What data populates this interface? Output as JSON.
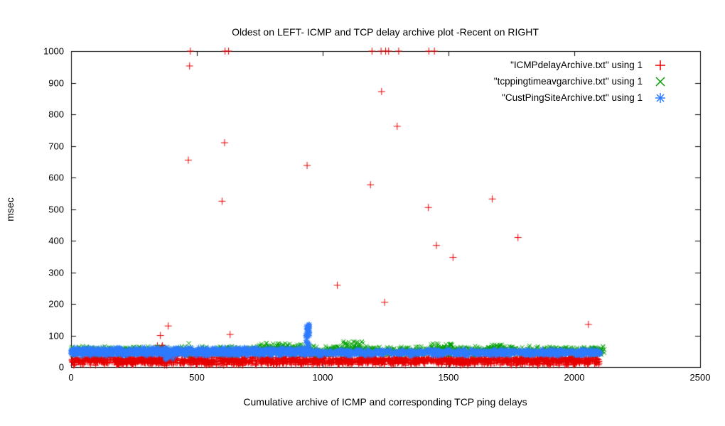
{
  "chart_data": {
    "type": "scatter",
    "title": "Oldest on LEFT- ICMP and TCP delay archive plot -Recent on RIGHT",
    "xlabel": "Cumulative archive of ICMP and corresponding TCP ping delays",
    "ylabel": "msec",
    "xlim": [
      0,
      2500
    ],
    "ylim": [
      0,
      1000
    ],
    "xticks": [
      0,
      500,
      1000,
      1500,
      2000,
      2500
    ],
    "yticks": [
      0,
      100,
      200,
      300,
      400,
      500,
      600,
      700,
      800,
      900,
      1000
    ],
    "grid": false,
    "legend_position": "top-right-inside",
    "background": "#ffffff",
    "axis_color": "#000000",
    "series": [
      {
        "name": "\"ICMPdelayArchive.txt\" using 1",
        "marker": "plus",
        "color": "#e60000",
        "band": {
          "x_min": 0,
          "x_max": 2100,
          "y_min": 4,
          "y_max": 36,
          "count": 1900,
          "seed": 11
        },
        "clusters": [
          {
            "x": 360,
            "spread": 18,
            "y_min": 45,
            "y_max": 70,
            "count": 10,
            "seed": 12
          }
        ],
        "points": [
          [
            355,
            100
          ],
          [
            386,
            130
          ],
          [
            466,
            655
          ],
          [
            471,
            953
          ],
          [
            474,
            1000
          ],
          [
            600,
            525
          ],
          [
            610,
            710
          ],
          [
            612,
            1000
          ],
          [
            626,
            1000
          ],
          [
            632,
            103
          ],
          [
            938,
            638
          ],
          [
            1058,
            259
          ],
          [
            1190,
            577
          ],
          [
            1196,
            1000
          ],
          [
            1232,
            1000
          ],
          [
            1234,
            872
          ],
          [
            1246,
            205
          ],
          [
            1250,
            1000
          ],
          [
            1262,
            1000
          ],
          [
            1296,
            762
          ],
          [
            1302,
            1000
          ],
          [
            1420,
            505
          ],
          [
            1422,
            1000
          ],
          [
            1444,
            1000
          ],
          [
            1452,
            385
          ],
          [
            1518,
            347
          ],
          [
            1674,
            532
          ],
          [
            1776,
            410
          ],
          [
            2056,
            135
          ]
        ]
      },
      {
        "name": "\"tcppingtimeavgarchive.txt\" using 1",
        "marker": "x",
        "color": "#00a000",
        "band": {
          "x_min": 0,
          "x_max": 2115,
          "y_min": 36,
          "y_max": 68,
          "count": 1500,
          "seed": 21
        },
        "clusters": [
          {
            "x": 855,
            "spread": 110,
            "y_min": 55,
            "y_max": 78,
            "count": 70,
            "seed": 22
          },
          {
            "x": 1120,
            "spread": 45,
            "y_min": 55,
            "y_max": 82,
            "count": 45,
            "seed": 23
          },
          {
            "x": 1470,
            "spread": 45,
            "y_min": 55,
            "y_max": 76,
            "count": 35,
            "seed": 24
          },
          {
            "x": 1685,
            "spread": 35,
            "y_min": 52,
            "y_max": 72,
            "count": 25,
            "seed": 25
          },
          {
            "x": 2075,
            "spread": 45,
            "y_min": 38,
            "y_max": 62,
            "count": 35,
            "seed": 26
          }
        ],
        "points": [
          [
            468,
            75
          ]
        ]
      },
      {
        "name": "\"CustPingSiteArchive.txt\" using 1",
        "marker": "asterisk",
        "color": "#2e7bff",
        "band": {
          "x_min": 0,
          "x_max": 2105,
          "y_min": 34,
          "y_max": 58,
          "count": 1700,
          "seed": 31
        },
        "clusters": [
          {
            "x": 470,
            "spread": 470,
            "y_min": 42,
            "y_max": 62,
            "count": 450,
            "seed": 32
          },
          {
            "x": 941,
            "spread": 8,
            "y_min": 55,
            "y_max": 135,
            "count": 45,
            "seed": 33
          },
          {
            "x": 390,
            "spread": 15,
            "y_min": 22,
            "y_max": 34,
            "count": 8,
            "seed": 34
          }
        ],
        "points": []
      }
    ]
  }
}
